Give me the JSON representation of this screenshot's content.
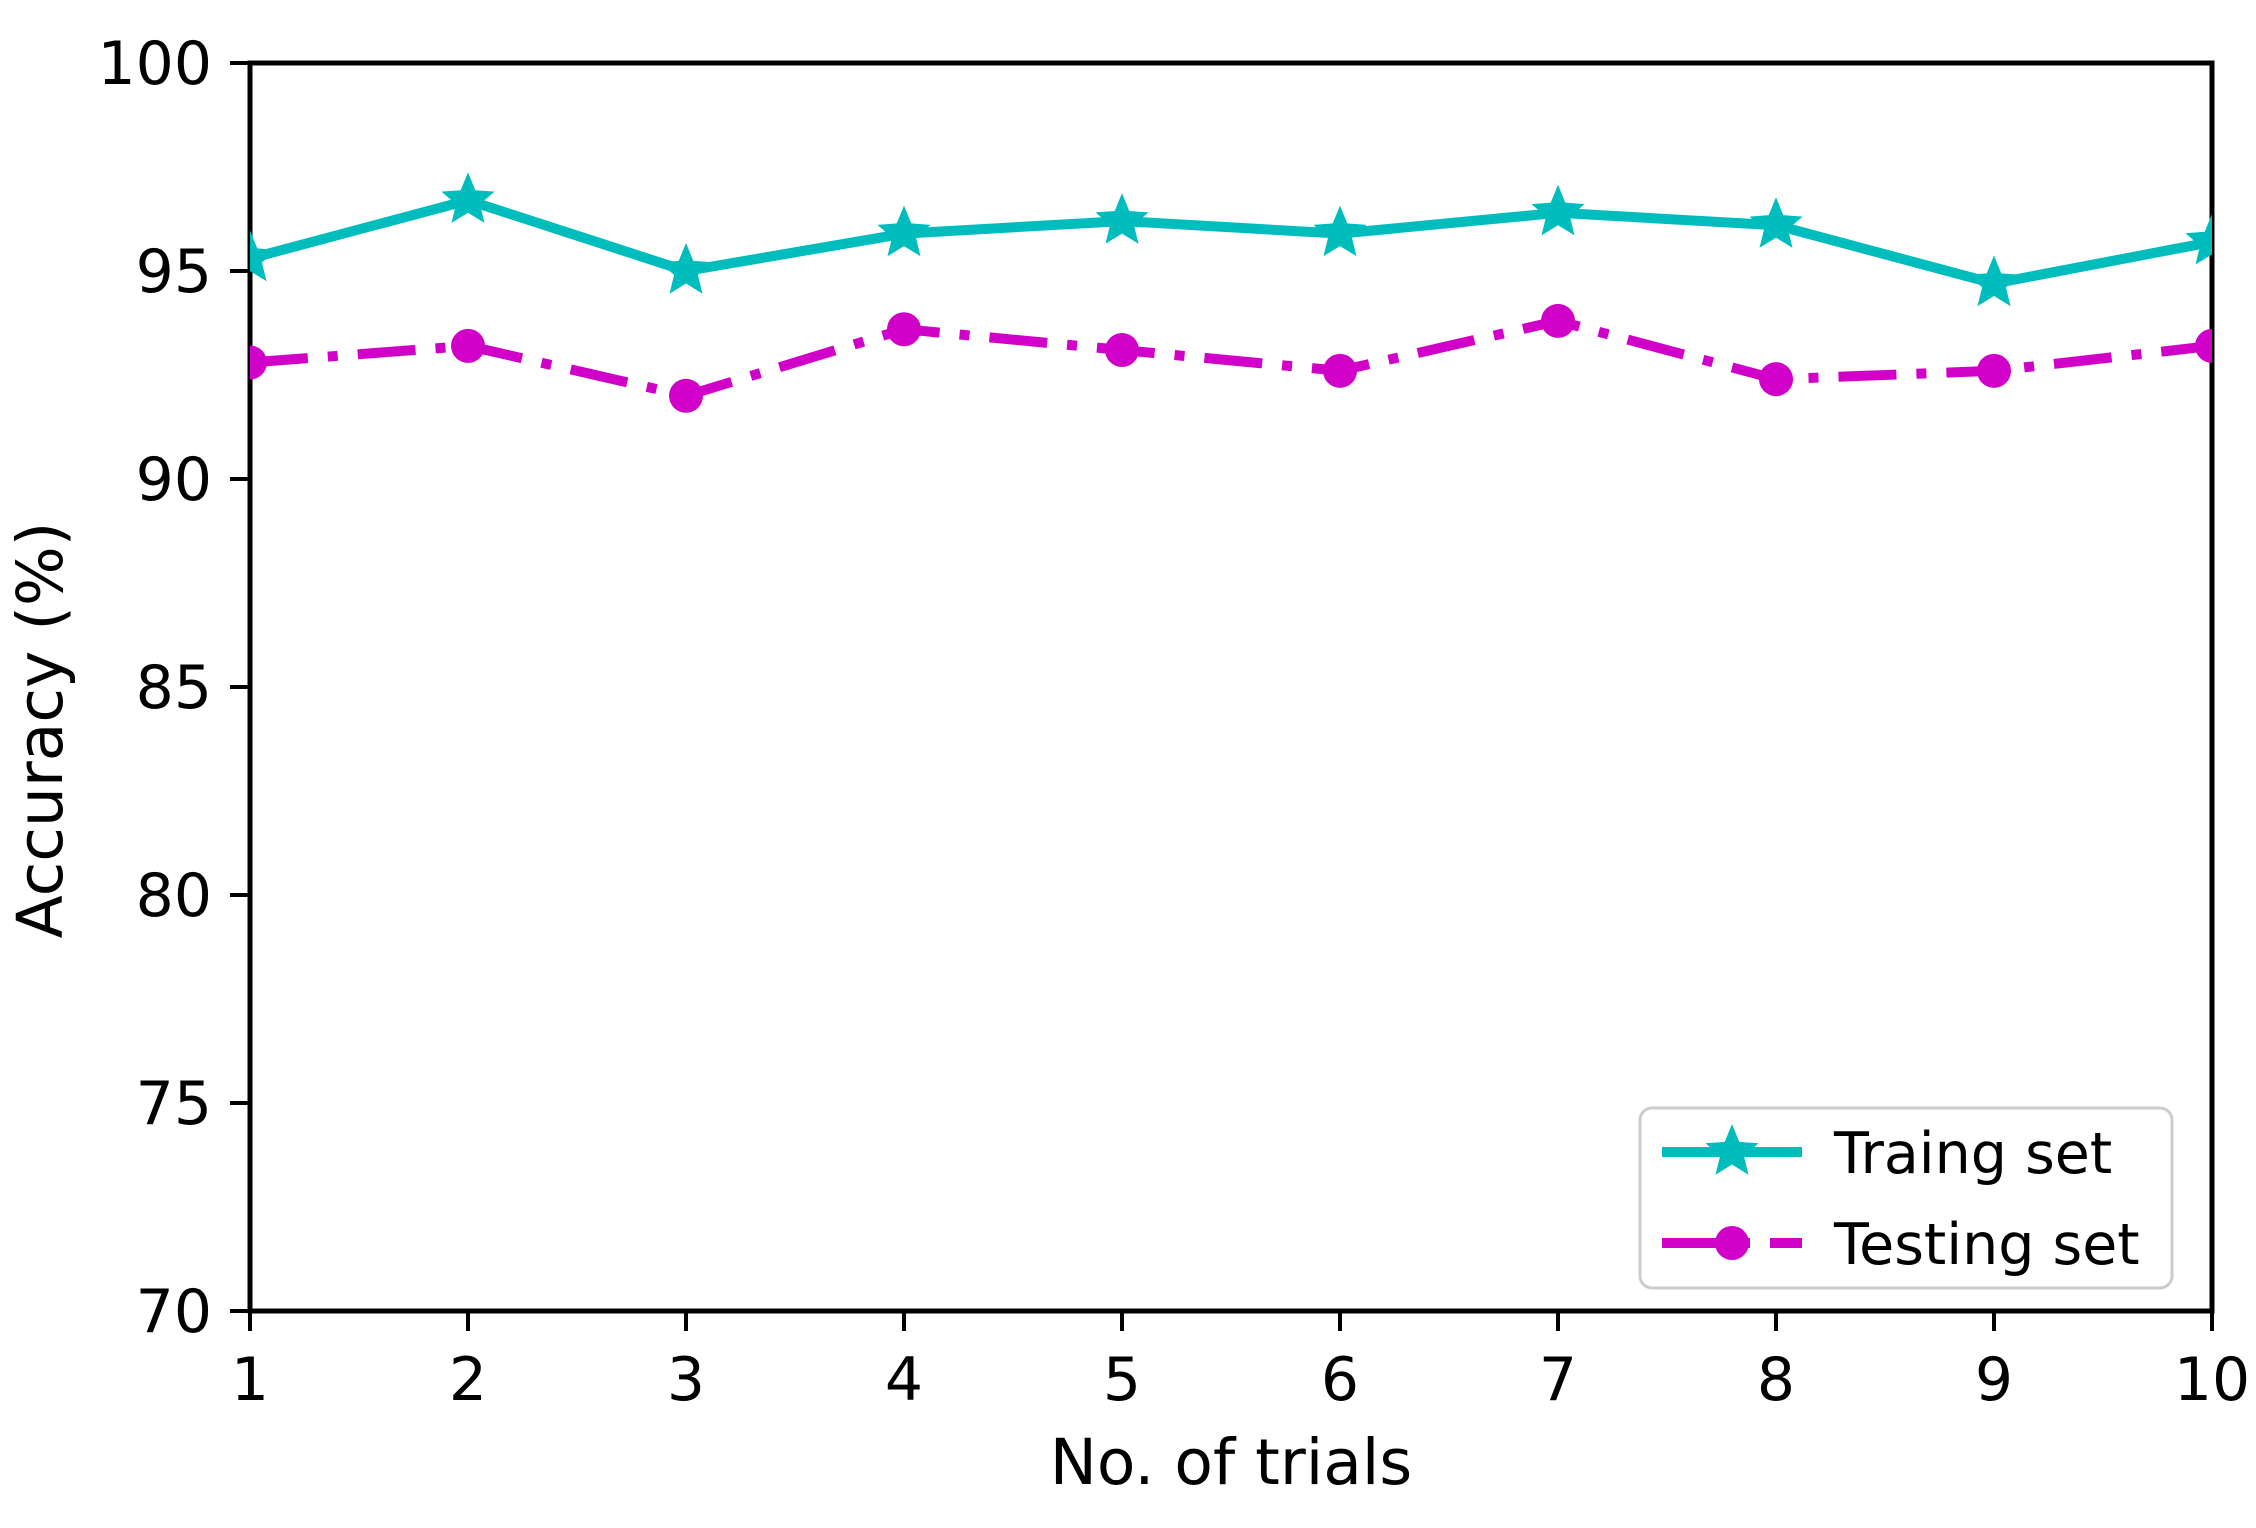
{
  "figure": {
    "background": "#ffffff",
    "text_color": "#000000",
    "axis_color": "#000000",
    "legend_border_color": "#cccccc",
    "legend_background": "#ffffff"
  },
  "chart_data": {
    "type": "line",
    "title": "",
    "xlabel": "No. of trials",
    "ylabel": "Accuracy (%)",
    "x": [
      1,
      2,
      3,
      4,
      5,
      6,
      7,
      8,
      9,
      10
    ],
    "xlim": [
      1,
      10
    ],
    "ylim": [
      70,
      100
    ],
    "yticks": [
      100,
      95,
      90,
      85,
      80,
      75,
      70
    ],
    "xticks": [
      1,
      2,
      3,
      4,
      5,
      6,
      7,
      8,
      9,
      10
    ],
    "grid": false,
    "legend": {
      "position": "lower-right",
      "entries": [
        "Traing set",
        "Testing set"
      ]
    },
    "series": [
      {
        "name": "Traing set",
        "color": "#00bdbd",
        "line_style": "solid",
        "marker": "star",
        "values": [
          95.3,
          96.7,
          95.0,
          95.9,
          96.2,
          95.9,
          96.4,
          96.1,
          94.7,
          95.7
        ]
      },
      {
        "name": "Testing set",
        "color": "#d100c9",
        "line_style": "dashdot",
        "marker": "circle",
        "values": [
          92.8,
          93.2,
          92.0,
          93.6,
          93.1,
          92.6,
          93.8,
          92.4,
          92.6,
          93.2
        ]
      }
    ]
  }
}
